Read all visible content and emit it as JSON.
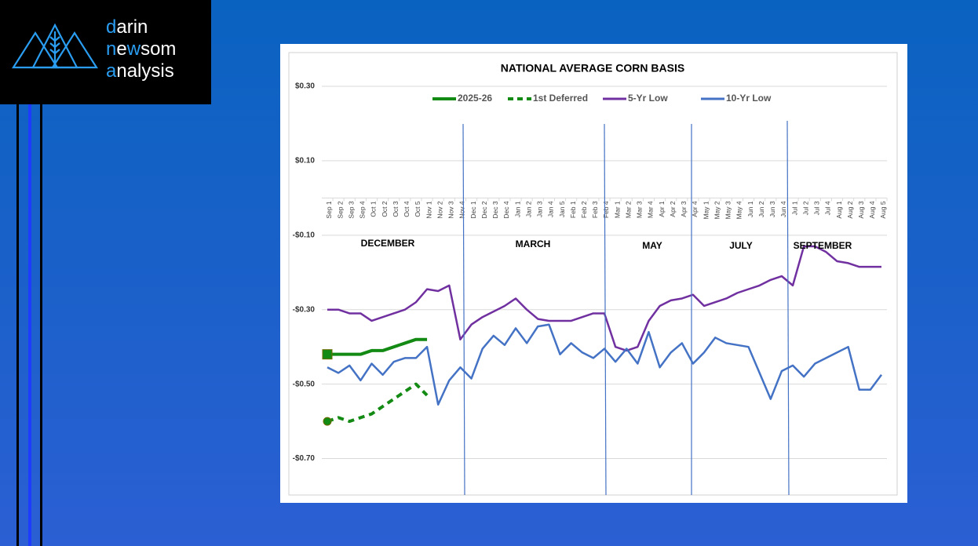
{
  "logo": {
    "lines": [
      [
        {
          "text": "d",
          "accent": true
        },
        {
          "text": "arin"
        }
      ],
      [
        {
          "text": "n",
          "accent": true
        },
        {
          "text": "e"
        },
        {
          "text": "w",
          "accent": true
        },
        {
          "text": "som"
        }
      ],
      [
        {
          "text": "a",
          "accent": true
        },
        {
          "text": "nalysis"
        }
      ]
    ]
  },
  "chart_data": {
    "type": "line",
    "title": "NATIONAL AVERAGE CORN BASIS",
    "contracts": [
      "DECEMBER",
      "MARCH",
      "MAY",
      "JULY",
      "SEPTEMBER"
    ],
    "categories": [
      "Sep 1",
      "Sep 2",
      "Sep 3",
      "Sep 4",
      "Oct 1",
      "Oct 2",
      "Oct 3",
      "Oct 4",
      "Oct 5",
      "Nov 1",
      "Nov 2",
      "Nov 3",
      "Nov 4",
      "Dec 1",
      "Dec 2",
      "Dec 3",
      "Dec 4",
      "Jan 1",
      "Jan 2",
      "Jan 3",
      "Jan 4",
      "Jan 5",
      "Feb 1",
      "Feb 2",
      "Feb 3",
      "Feb 4",
      "Mar 1",
      "Mar 2",
      "Mar 3",
      "Mar 4",
      "Apr 1",
      "Apr 2",
      "Apr 3",
      "Apr 4",
      "May 1",
      "May 2",
      "May 3",
      "May 4",
      "Jun 1",
      "Jun 2",
      "Jun 3",
      "Jun 4",
      "Jul 1",
      "Jul 2",
      "Jul 3",
      "Jul 4",
      "Aug 1",
      "Aug 2",
      "Aug 3",
      "Aug 4",
      "Aug 5"
    ],
    "series": [
      {
        "name": "2025-26",
        "color": "#138a13",
        "width": 4,
        "marker": "square",
        "values": [
          -0.42,
          -0.42,
          -0.42,
          -0.42,
          -0.41,
          -0.41,
          -0.4,
          -0.39,
          -0.38,
          -0.38,
          null,
          null,
          null,
          null,
          null,
          null,
          null,
          null,
          null,
          null,
          null,
          null,
          null,
          null,
          null,
          null,
          null,
          null,
          null,
          null,
          null,
          null,
          null,
          null,
          null,
          null,
          null,
          null,
          null,
          null,
          null,
          null,
          null,
          null,
          null,
          null,
          null,
          null,
          null,
          null,
          null
        ]
      },
      {
        "name": "1st Deferred",
        "color": "#138a13",
        "width": 4,
        "dash": true,
        "marker": "circle",
        "values": [
          -0.6,
          -0.59,
          -0.6,
          -0.59,
          -0.58,
          -0.56,
          -0.54,
          -0.52,
          -0.5,
          -0.53,
          null,
          null,
          null,
          null,
          null,
          null,
          null,
          null,
          null,
          null,
          null,
          null,
          null,
          null,
          null,
          null,
          null,
          null,
          null,
          null,
          null,
          null,
          null,
          null,
          null,
          null,
          null,
          null,
          null,
          null,
          null,
          null,
          null,
          null,
          null,
          null,
          null,
          null,
          null,
          null,
          null
        ]
      },
      {
        "name": "5-Yr Low",
        "color": "#7030a0",
        "width": 2.5,
        "values": [
          -0.3,
          -0.3,
          -0.31,
          -0.31,
          -0.33,
          -0.32,
          -0.31,
          -0.3,
          -0.28,
          -0.245,
          -0.25,
          -0.235,
          -0.38,
          -0.34,
          -0.32,
          -0.305,
          -0.29,
          -0.27,
          -0.3,
          -0.325,
          -0.33,
          -0.33,
          -0.33,
          -0.32,
          -0.31,
          -0.31,
          -0.4,
          -0.41,
          -0.4,
          -0.33,
          -0.29,
          -0.275,
          -0.27,
          -0.26,
          -0.29,
          -0.28,
          -0.27,
          -0.255,
          -0.245,
          -0.235,
          -0.22,
          -0.21,
          -0.235,
          -0.13,
          -0.13,
          -0.145,
          -0.17,
          -0.175,
          -0.185,
          -0.185,
          -0.185
        ]
      },
      {
        "name": "10-Yr Low",
        "color": "#4472c4",
        "width": 2.5,
        "values": [
          -0.455,
          -0.47,
          -0.45,
          -0.49,
          -0.445,
          -0.475,
          -0.44,
          -0.43,
          -0.43,
          -0.4,
          -0.555,
          -0.49,
          -0.455,
          -0.485,
          -0.405,
          -0.37,
          -0.395,
          -0.35,
          -0.39,
          -0.345,
          -0.34,
          -0.42,
          -0.39,
          -0.415,
          -0.43,
          -0.405,
          -0.44,
          -0.405,
          -0.445,
          -0.36,
          -0.455,
          -0.415,
          -0.39,
          -0.445,
          -0.415,
          -0.375,
          -0.39,
          -0.395,
          -0.4,
          -0.47,
          -0.54,
          -0.465,
          -0.45,
          -0.48,
          -0.445,
          -0.43,
          -0.415,
          -0.4,
          -0.515,
          -0.515,
          -0.475
        ]
      }
    ],
    "ylim": [
      -0.8,
      0.3
    ],
    "yticks": [
      {
        "value": 0.3,
        "label": "$0.30"
      },
      {
        "value": 0.1,
        "label": "$0.10"
      },
      {
        "value": -0.1,
        "label": "-$0.10"
      },
      {
        "value": -0.3,
        "label": "-$0.30"
      },
      {
        "value": -0.5,
        "label": "-$0.50"
      },
      {
        "value": -0.7,
        "label": "-$0.70"
      }
    ],
    "grid": true,
    "legend": "top"
  }
}
